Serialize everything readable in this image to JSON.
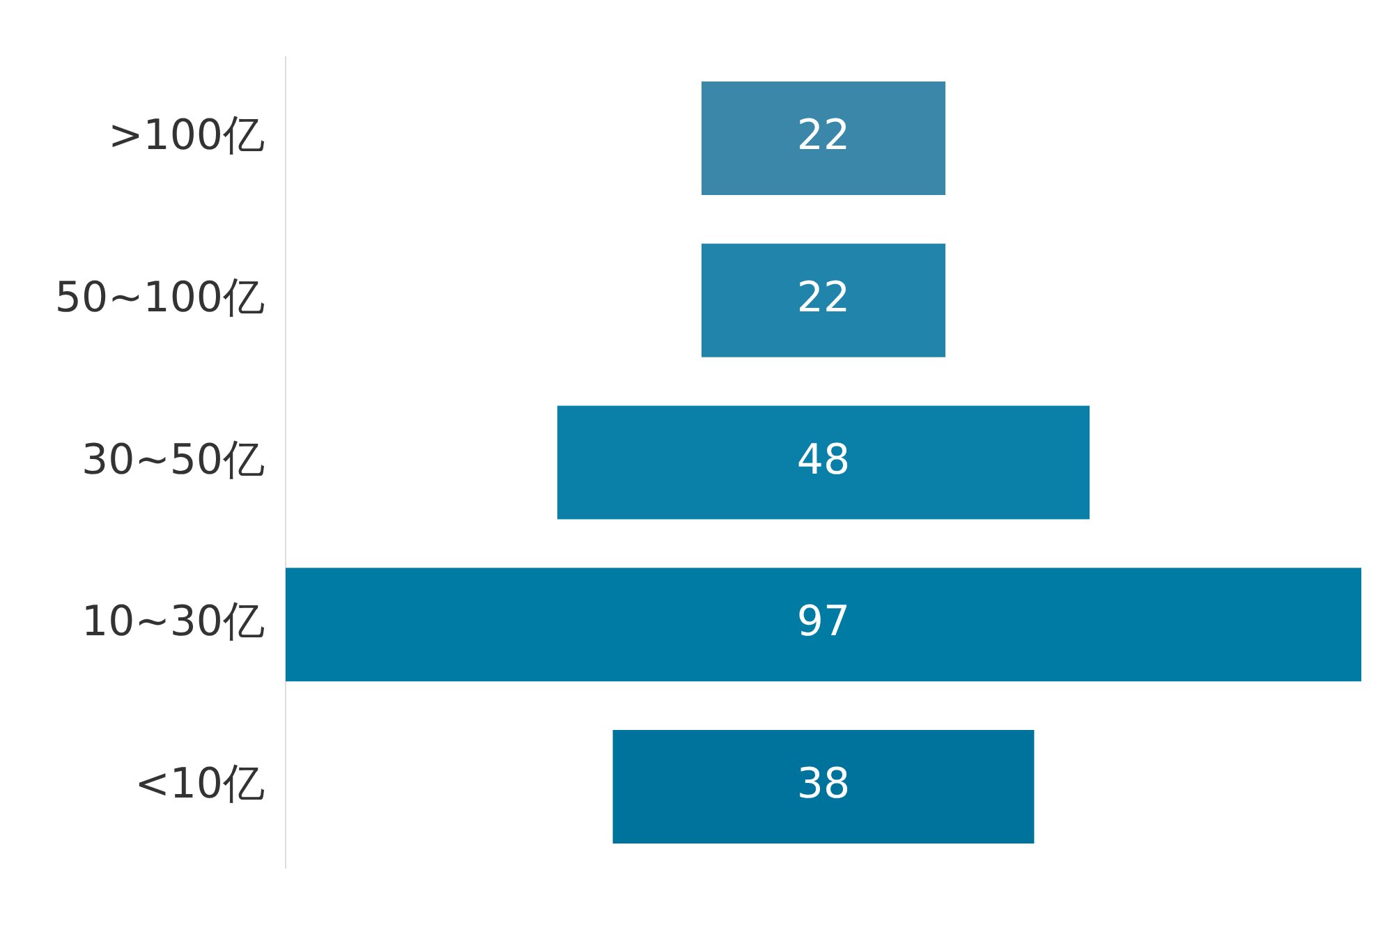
{
  "chart_data": {
    "type": "other",
    "categories": [
      ">100亿",
      "50~100亿",
      "30~50亿",
      "10~30亿",
      "<10亿"
    ],
    "values": [
      22,
      22,
      48,
      97,
      38
    ],
    "colors": [
      "#3a87aa",
      "#2084ab",
      "#0a7fa8",
      "#007ca4",
      "#00739c"
    ],
    "data_labels": true
  }
}
